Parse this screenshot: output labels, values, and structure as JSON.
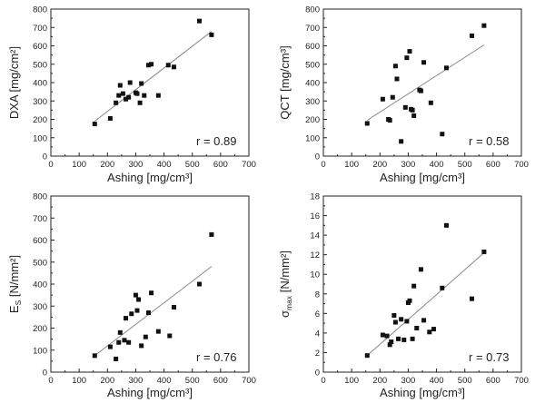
{
  "chart_data": [
    {
      "type": "scatter",
      "xlabel": "Ashing [mg/cm³]",
      "ylabel": "DXA [mg/cm²]",
      "ylabel_sub": "",
      "ylabel_rest": "",
      "annotation": "r = 0.89",
      "xlim": [
        0,
        700
      ],
      "ylim": [
        0,
        800
      ],
      "xticks": [
        "0",
        "100",
        "200",
        "300",
        "400",
        "500",
        "600",
        "700"
      ],
      "yticks": [
        "0",
        "100",
        "200",
        "300",
        "400",
        "500",
        "600",
        "700",
        "800"
      ],
      "fit": [
        [
          155,
          190
        ],
        [
          568,
          678
        ]
      ],
      "x": [
        155,
        210,
        230,
        240,
        245,
        255,
        265,
        275,
        280,
        300,
        305,
        315,
        320,
        330,
        345,
        355,
        380,
        415,
        435,
        525,
        568
      ],
      "y": [
        175,
        205,
        290,
        330,
        385,
        340,
        310,
        320,
        400,
        345,
        340,
        290,
        395,
        330,
        495,
        500,
        330,
        495,
        485,
        735,
        660
      ]
    },
    {
      "type": "scatter",
      "xlabel": "Ashing [mg/cm³]",
      "ylabel": "QCT [mg/cm³]",
      "ylabel_sub": "",
      "ylabel_rest": "",
      "annotation": "r = 0.58",
      "xlim": [
        0,
        700
      ],
      "ylim": [
        0,
        800
      ],
      "xticks": [
        "0",
        "100",
        "200",
        "300",
        "400",
        "500",
        "600",
        "700"
      ],
      "yticks": [
        "0",
        "100",
        "200",
        "300",
        "400",
        "500",
        "600",
        "700",
        "800"
      ],
      "fit": [
        [
          155,
          195
        ],
        [
          568,
          605
        ]
      ],
      "x": [
        155,
        210,
        230,
        235,
        245,
        255,
        260,
        275,
        290,
        295,
        305,
        310,
        315,
        320,
        340,
        345,
        355,
        380,
        420,
        435,
        525,
        568
      ],
      "y": [
        178,
        310,
        200,
        195,
        320,
        490,
        420,
        80,
        265,
        535,
        570,
        255,
        250,
        220,
        360,
        355,
        510,
        290,
        120,
        480,
        655,
        710
      ]
    },
    {
      "type": "scatter",
      "xlabel": "Ashing [mg/cm³]",
      "ylabel": "E",
      "ylabel_sub": "S",
      "ylabel_rest": " [N/mm²]",
      "annotation": "r = 0.76",
      "xlim": [
        0,
        700
      ],
      "ylim": [
        0,
        800
      ],
      "xticks": [
        "0",
        "100",
        "200",
        "300",
        "400",
        "500",
        "600",
        "700"
      ],
      "yticks": [
        "0",
        "100",
        "200",
        "300",
        "400",
        "500",
        "600",
        "700",
        "800"
      ],
      "fit": [
        [
          155,
          75
        ],
        [
          568,
          480
        ]
      ],
      "x": [
        155,
        210,
        230,
        240,
        245,
        260,
        265,
        275,
        285,
        300,
        305,
        310,
        320,
        335,
        345,
        355,
        380,
        420,
        435,
        525,
        568
      ],
      "y": [
        75,
        115,
        60,
        135,
        180,
        145,
        245,
        135,
        265,
        350,
        280,
        330,
        120,
        160,
        270,
        360,
        185,
        165,
        295,
        400,
        625
      ]
    },
    {
      "type": "scatter",
      "xlabel": "Ashing [mg/cm³]",
      "ylabel": "σ",
      "ylabel_sub": "max",
      "ylabel_rest": " [N/mm²]",
      "annotation": "r = 0.73",
      "xlim": [
        0,
        700
      ],
      "ylim": [
        0,
        18
      ],
      "xticks": [
        "0",
        "100",
        "200",
        "300",
        "400",
        "500",
        "600",
        "700"
      ],
      "yticks": [
        "0",
        "2",
        "4",
        "6",
        "8",
        "10",
        "12",
        "14",
        "16",
        "18"
      ],
      "fit": [
        [
          155,
          1.7
        ],
        [
          568,
          12.2
        ]
      ],
      "x": [
        155,
        210,
        225,
        235,
        240,
        250,
        255,
        265,
        275,
        285,
        295,
        300,
        305,
        315,
        320,
        330,
        345,
        355,
        375,
        390,
        420,
        435,
        525,
        568
      ],
      "y": [
        1.7,
        3.8,
        3.7,
        2.8,
        3.1,
        5.8,
        5.1,
        3.4,
        5.4,
        3.3,
        5.2,
        7.1,
        7.3,
        3.4,
        8.8,
        4.5,
        10.5,
        5.3,
        4.1,
        4.4,
        8.6,
        15.0,
        7.5,
        12.3
      ]
    }
  ]
}
